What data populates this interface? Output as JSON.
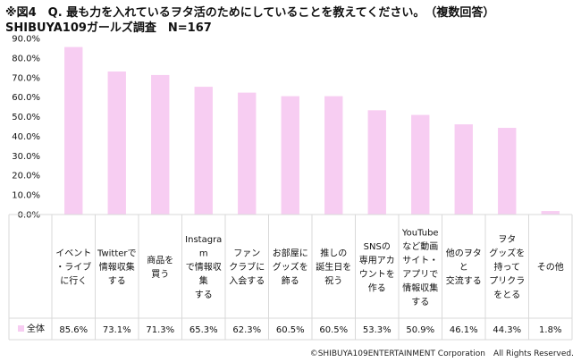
{
  "header": {
    "title_line1": "※図4　Q. 最も力を入れているヲタ活のためにしていることを教えてください。　（複数回答）",
    "title_line2": "SHIBUYA109ガールズ調査　N=167"
  },
  "footer": {
    "copyright": "©SHIBUYA109ENTERTAINMENT Corporation　All Rights Reserved."
  },
  "chart_data": {
    "type": "bar",
    "categories": [
      [
        "イベント",
        "・ライブ",
        "に行く"
      ],
      [
        "Twitterで",
        "情報収集",
        "する"
      ],
      [
        "商品を",
        "買う"
      ],
      [
        "Instagra",
        "m",
        "で情報収",
        "集",
        "する"
      ],
      [
        "ファン",
        "クラブに",
        "入会する"
      ],
      [
        "お部屋に",
        "グッズを",
        "飾る"
      ],
      [
        "推しの",
        "誕生日を",
        "祝う"
      ],
      [
        "SNSの",
        "専用アカ",
        "ウントを",
        "作る"
      ],
      [
        "YouTube",
        "など動画",
        "サイト・",
        "アプリで",
        "情報収集",
        "する"
      ],
      [
        "他のヲタ",
        "と",
        "交流する"
      ],
      [
        "ヲタ",
        "グッズを",
        "持って",
        "プリクラ",
        "をとる"
      ],
      [
        "その他"
      ]
    ],
    "series": [
      {
        "name": "全体",
        "values": [
          85.6,
          73.1,
          71.3,
          65.3,
          62.3,
          60.5,
          60.5,
          53.3,
          50.9,
          46.1,
          44.3,
          1.8
        ],
        "labels": [
          "85.6%",
          "73.1%",
          "71.3%",
          "65.3%",
          "62.3%",
          "60.5%",
          "60.5%",
          "53.3%",
          "50.9%",
          "46.1%",
          "44.3%",
          "1.8%"
        ]
      }
    ],
    "yticks": [
      "0.0%",
      "10.0%",
      "20.0%",
      "30.0%",
      "40.0%",
      "50.0%",
      "60.0%",
      "70.0%",
      "80.0%",
      "90.0%"
    ],
    "ylim": [
      0,
      90
    ],
    "grid": false,
    "bar_color": "#f7cdf2",
    "legend_color": "#f7cdf2"
  }
}
